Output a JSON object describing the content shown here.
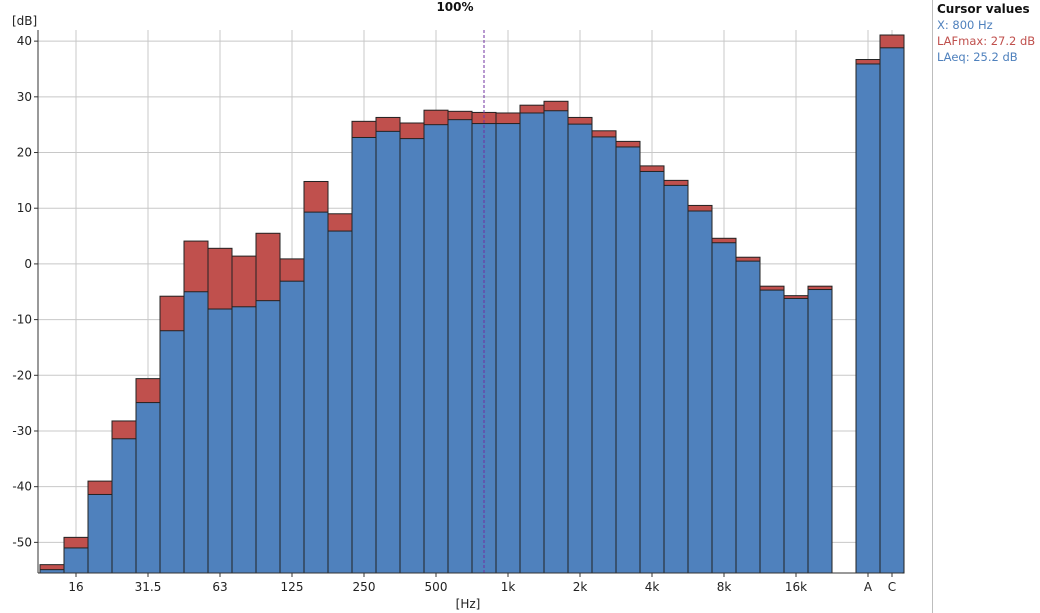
{
  "chart_data": {
    "type": "bar",
    "title": "100%",
    "ylabel": "[dB]",
    "xlabel": "[Hz]",
    "ylim": [
      -55.5,
      42
    ],
    "yticks": [
      40,
      30,
      20,
      10,
      0,
      -10,
      -20,
      -30,
      -40,
      -50
    ],
    "categories": [
      "12.5",
      "16",
      "20",
      "25",
      "31.5",
      "40",
      "50",
      "63",
      "80",
      "100",
      "125",
      "160",
      "200",
      "250",
      "315",
      "400",
      "500",
      "630",
      "800",
      "1k",
      "1.25k",
      "1.6k",
      "2k",
      "2.5k",
      "3.15k",
      "4k",
      "5k",
      "6.3k",
      "8k",
      "10k",
      "12.5k",
      "16k",
      "20k",
      "A",
      "C"
    ],
    "xtick_labels": [
      {
        "category": "16",
        "text": "16"
      },
      {
        "category": "31.5",
        "text": "31.5"
      },
      {
        "category": "63",
        "text": "63"
      },
      {
        "category": "125",
        "text": "125"
      },
      {
        "category": "250",
        "text": "250"
      },
      {
        "category": "500",
        "text": "500"
      },
      {
        "category": "1k",
        "text": "1k"
      },
      {
        "category": "2k",
        "text": "2k"
      },
      {
        "category": "4k",
        "text": "4k"
      },
      {
        "category": "8k",
        "text": "8k"
      },
      {
        "category": "16k",
        "text": "16k"
      },
      {
        "category": "A",
        "text": "A"
      },
      {
        "category": "C",
        "text": "C"
      }
    ],
    "series": [
      {
        "name": "LAFmax",
        "color": "#c0504d",
        "values": [
          -54,
          -49.1,
          -39,
          -28.2,
          -20.6,
          -5.8,
          4.1,
          2.8,
          1.4,
          5.5,
          0.9,
          14.8,
          9,
          25.6,
          26.3,
          25.3,
          27.6,
          27.4,
          27.2,
          27.1,
          28.5,
          29.2,
          26.3,
          23.9,
          22,
          17.6,
          15,
          10.5,
          4.6,
          1.2,
          -4,
          -5.7,
          -4,
          36.7,
          41.1
        ]
      },
      {
        "name": "LAeq",
        "color": "#4f81bd",
        "values": [
          -54.9,
          -51,
          -41.4,
          -31.4,
          -24.9,
          -12,
          -5,
          -8.1,
          -7.7,
          -6.6,
          -3.1,
          9.3,
          5.9,
          22.7,
          23.8,
          22.5,
          25,
          25.9,
          25.2,
          25.2,
          27.1,
          27.5,
          25.1,
          22.8,
          21,
          16.6,
          14.1,
          9.5,
          3.8,
          0.5,
          -4.7,
          -6.2,
          -4.6,
          35.9,
          38.8
        ]
      }
    ],
    "cursor": {
      "category": "800"
    },
    "grid": true
  },
  "cursor_panel": {
    "title": "Cursor values",
    "rows": [
      {
        "text": "X: 800 Hz",
        "color": "#4f81bd"
      },
      {
        "text": "LAFmax: 27.2 dB",
        "color": "#c0504d"
      },
      {
        "text": "LAeq: 25.2 dB",
        "color": "#4f81bd"
      }
    ]
  }
}
